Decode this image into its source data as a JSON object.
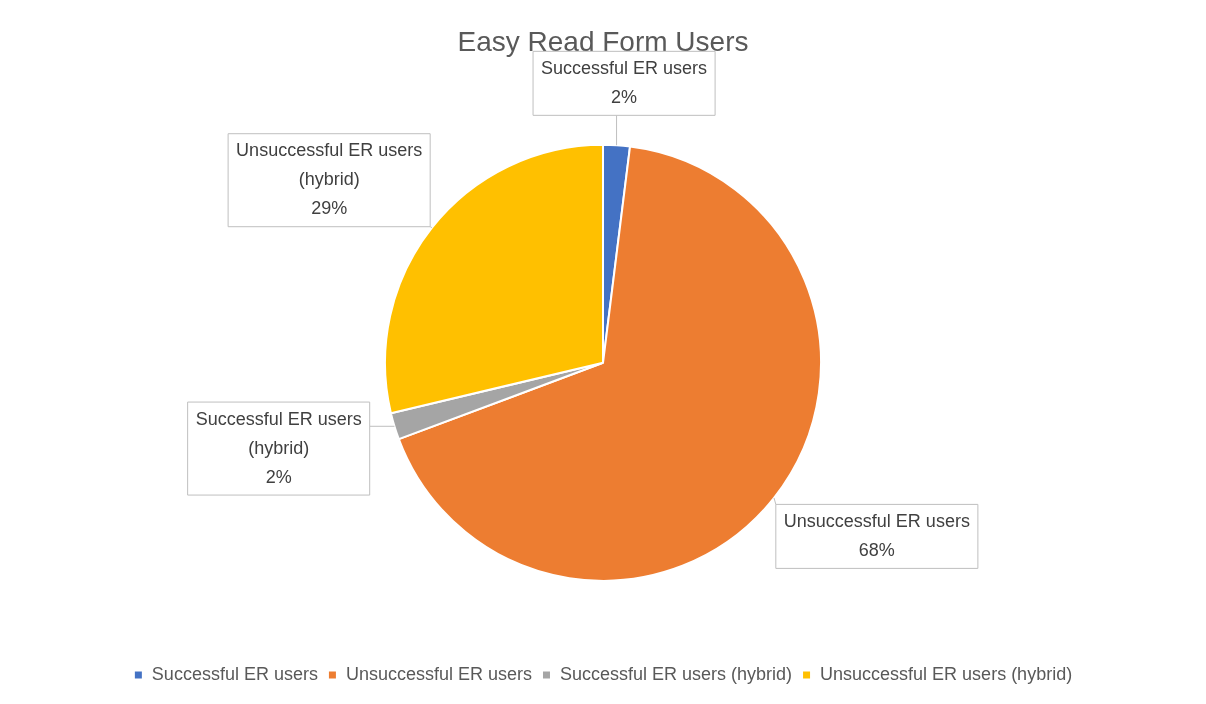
{
  "chart_data": {
    "type": "pie",
    "title": "Easy Read Form Users",
    "categories": [
      "Successful ER users",
      "Unsuccessful ER users",
      "Successful ER users (hybrid)",
      "Unsuccessful ER users (hybrid)"
    ],
    "values": [
      2,
      68,
      2,
      29
    ],
    "value_labels": [
      "2%",
      "68%",
      "2%",
      "29%"
    ],
    "colors": [
      "#4472c4",
      "#ed7d31",
      "#a5a5a5",
      "#ffc000"
    ],
    "legend": "bottom"
  }
}
